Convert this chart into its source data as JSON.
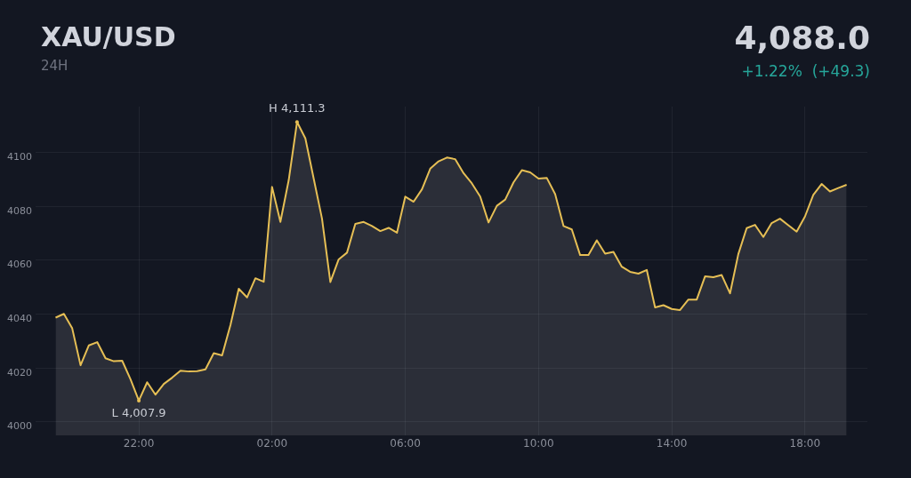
{
  "chart_data": {
    "type": "area",
    "title": "XAU/USD",
    "subtitle": "24H",
    "annotations": [
      "4,088.0",
      "+1.22%  (+49.3)",
      {
        "text": "H 4,111.3",
        "y": 4111.3
      },
      {
        "text": "L 4,007.9",
        "y": 4007.9
      }
    ],
    "categories": [
      null,
      null,
      null,
      null,
      null,
      null,
      null,
      null,
      null,
      null,
      "22:00",
      null,
      null,
      null,
      null,
      null,
      null,
      null,
      null,
      null,
      null,
      null,
      null,
      null,
      null,
      null,
      "02:00",
      null,
      null,
      null,
      null,
      null,
      null,
      null,
      null,
      null,
      null,
      null,
      null,
      null,
      null,
      null,
      "06:00",
      null,
      null,
      null,
      null,
      null,
      null,
      null,
      null,
      null,
      null,
      null,
      null,
      null,
      null,
      null,
      "10:00",
      null,
      null,
      null,
      null,
      null,
      null,
      null,
      null,
      null,
      null,
      null,
      null,
      null,
      null,
      null,
      "14:00",
      null,
      null,
      null,
      null,
      null,
      null,
      null,
      null,
      null,
      null,
      null,
      null,
      null,
      null,
      null,
      "18:00",
      null,
      null,
      null,
      null,
      null
    ],
    "series": [
      {
        "color": "#e6bf55",
        "values": [
          4038.7,
          4040.1,
          4034.7,
          4021,
          4028.4,
          4029.6,
          4023.6,
          4022.5,
          4022.7,
          4015.8,
          4007.9,
          4014.7,
          4010.1,
          4014.1,
          4016.4,
          4019,
          4018.7,
          4018.8,
          4019.5,
          4025.5,
          4024.7,
          4035.9,
          4049.4,
          4046.2,
          4053.3,
          4052,
          4087.2,
          4074.2,
          4089.7,
          4111.3,
          4105.2,
          4090.3,
          4075.4,
          4051.9,
          4060.3,
          4062.8,
          4073.5,
          4074.2,
          4072.7,
          4070.8,
          4072,
          4070.2,
          4083.6,
          4081.7,
          4086.3,
          4094,
          4096.7,
          4098.1,
          4097.5,
          4092.3,
          4088.5,
          4083.6,
          4074,
          4080.2,
          4082.5,
          4088.9,
          4093.4,
          4092.6,
          4090.3,
          4090.5,
          4084.5,
          4072.7,
          4071.4,
          4061.9,
          4061.9,
          4067.4,
          4062.4,
          4063.1,
          4057.6,
          4055.7,
          4055,
          4056.4,
          4042.5,
          4043.3,
          4041.9,
          4041.5,
          4045.4,
          4045.4,
          4054,
          4053.7,
          4054.5,
          4047.7,
          4062.3,
          4071.9,
          4073.1,
          4068.6,
          4073.8,
          4075.4,
          4073,
          4070.6,
          4076.2,
          4084.2,
          4088.3,
          4085.5,
          4086.8,
          4088
        ]
      }
    ],
    "ylim": [
      3995,
      4117
    ],
    "yticks": [
      4000,
      4020,
      4040,
      4060,
      4080,
      4100
    ],
    "grid": true,
    "marker": "none",
    "line_style": "solid"
  }
}
